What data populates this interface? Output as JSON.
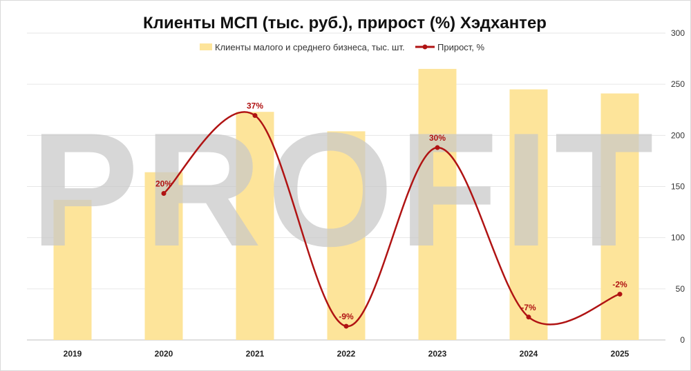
{
  "chart_data": {
    "type": "bar+line",
    "title": "Клиенты МСП (тыс. руб.), прирост (%) Хэдхантер",
    "categories": [
      "2019",
      "2020",
      "2021",
      "2022",
      "2023",
      "2024",
      "2025"
    ],
    "series": [
      {
        "name": "Клиенты малого и среднего бизнеса, тыс. шт.",
        "type": "bar",
        "color": "#fde49a",
        "values": [
          137,
          164,
          223,
          204,
          265,
          245,
          241
        ]
      },
      {
        "name": "Прирост, %",
        "type": "line",
        "color": "#b01313",
        "values": [
          null,
          20,
          37,
          -9,
          30,
          -7,
          -2
        ],
        "labels": [
          "",
          "20%",
          "37%",
          "-9%",
          "30%",
          "-7%",
          "-2%"
        ]
      }
    ],
    "y_axis": {
      "position": "right",
      "min": 0,
      "max": 300,
      "ticks": [
        0,
        50,
        100,
        150,
        200,
        250,
        300
      ]
    },
    "line_axis": {
      "min": -12,
      "max": 55
    },
    "grid": "horizontal",
    "legend_position": "top"
  },
  "watermark": "PROFIT"
}
